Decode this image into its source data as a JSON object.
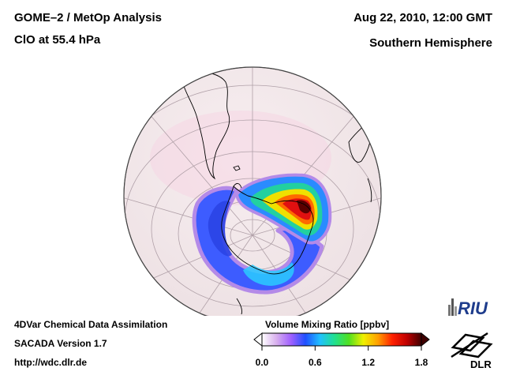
{
  "header": {
    "title_line1": "GOME–2 / MetOp Analysis",
    "title_line2": "ClO at 55.4 hPa",
    "date": "Aug 22, 2010, 12:00 GMT",
    "hemisphere": "Southern Hemisphere"
  },
  "footer": {
    "line1": "4DVar Chemical Data Assimilation",
    "line2": "SACADA Version 1.7",
    "line3": "http://wdc.dlr.de"
  },
  "colorbar": {
    "title": "Volume Mixing Ratio [ppbv]",
    "min": 0.0,
    "max": 1.8,
    "ticks": [
      {
        "value": 0.0,
        "label": "0.0"
      },
      {
        "value": 0.6,
        "label": "0.6"
      },
      {
        "value": 1.2,
        "label": "1.2"
      },
      {
        "value": 1.8,
        "label": "1.8"
      }
    ],
    "stops": [
      "#ffffff",
      "#d8b0ee",
      "#a060ff",
      "#2050ff",
      "#20c0ff",
      "#20e090",
      "#50e020",
      "#f0f000",
      "#ffa000",
      "#ff2000",
      "#c00000",
      "#400000"
    ]
  },
  "logos": {
    "riu_text": "RIU",
    "dlr_text": "DLR"
  },
  "colors": {
    "globe_fill": "#f4e8ea",
    "coastline": "#000000",
    "grid": "#b0a0a8"
  }
}
